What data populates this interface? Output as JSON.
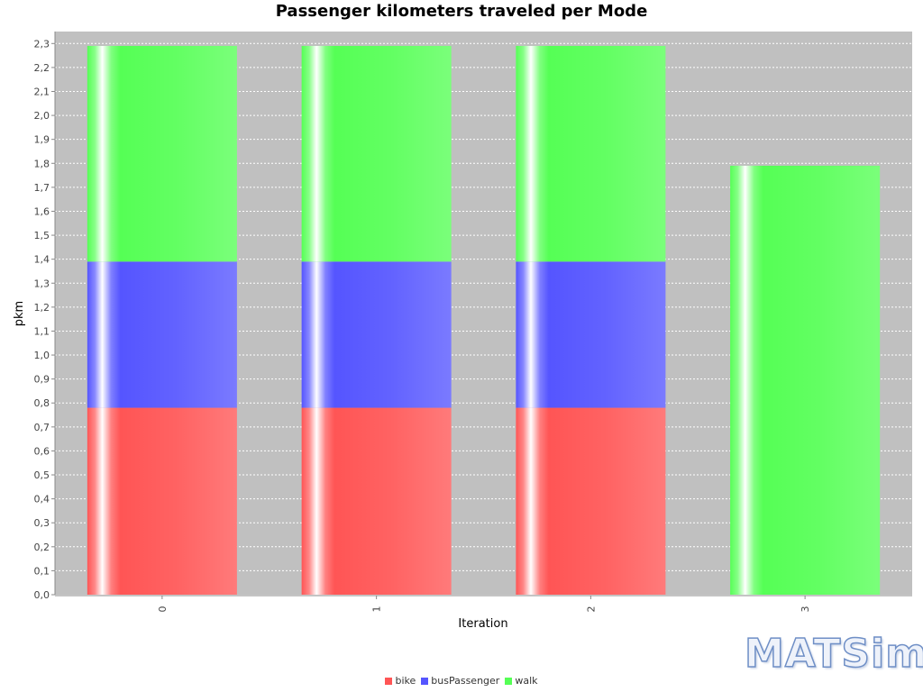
{
  "chart_data": {
    "type": "bar",
    "stacked": true,
    "title": "Passenger kilometers traveled per Mode",
    "xlabel": "Iteration",
    "ylabel": "pkm",
    "categories": [
      "0",
      "1",
      "2",
      "3"
    ],
    "ylim": [
      0,
      2.35
    ],
    "yticks": [
      "0,0",
      "0,1",
      "0,2",
      "0,3",
      "0,4",
      "0,5",
      "0,6",
      "0,7",
      "0,8",
      "0,9",
      "1,0",
      "1,1",
      "1,2",
      "1,3",
      "1,4",
      "1,5",
      "1,6",
      "1,7",
      "1,8",
      "1,9",
      "2,0",
      "2,1",
      "2,2",
      "2,3"
    ],
    "grid": true,
    "legend_position": "bottom",
    "series": [
      {
        "name": "bike",
        "color": "#ff5555",
        "values": [
          0.78,
          0.78,
          0.78,
          0
        ]
      },
      {
        "name": "busPassenger",
        "color": "#5555ff",
        "values": [
          0.61,
          0.61,
          0.61,
          0
        ]
      },
      {
        "name": "walk",
        "color": "#55ff55",
        "values": [
          0.9,
          0.9,
          0.9,
          1.79
        ]
      }
    ]
  },
  "logo_text": "MATSim"
}
